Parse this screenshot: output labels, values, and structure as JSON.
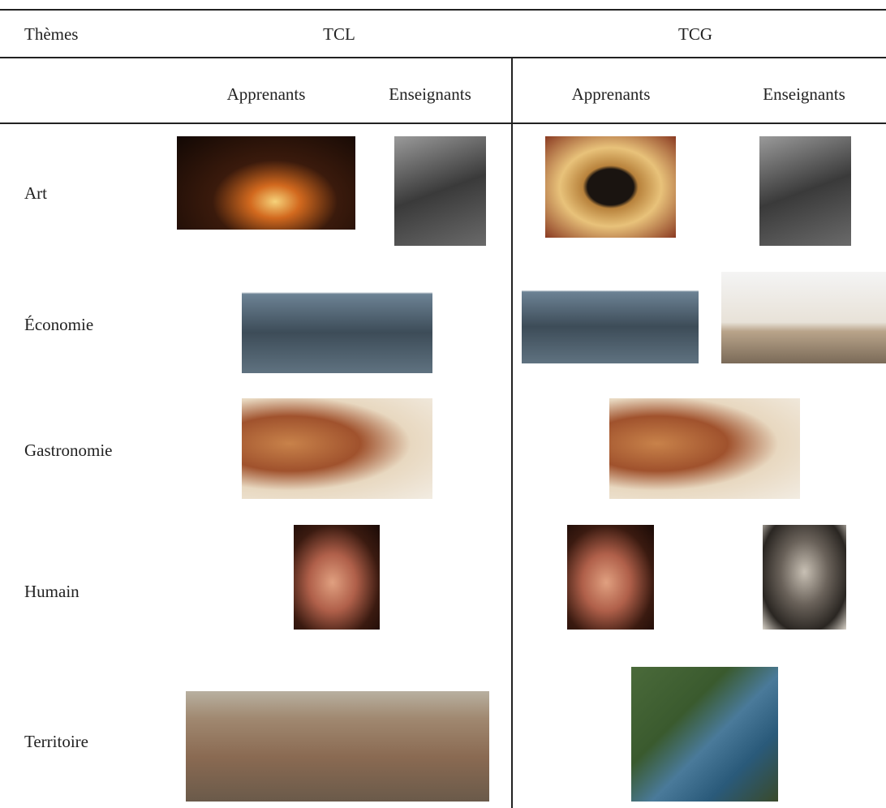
{
  "table": {
    "header": [
      "Thèmes",
      "TCL",
      "TCG"
    ],
    "subheader": [
      "Apprenants",
      "Enseignants",
      "Apprenants",
      "Enseignants"
    ],
    "rows": [
      "Art",
      "Économie",
      "Gastronomie",
      "Humain",
      "Territoire"
    ]
  }
}
